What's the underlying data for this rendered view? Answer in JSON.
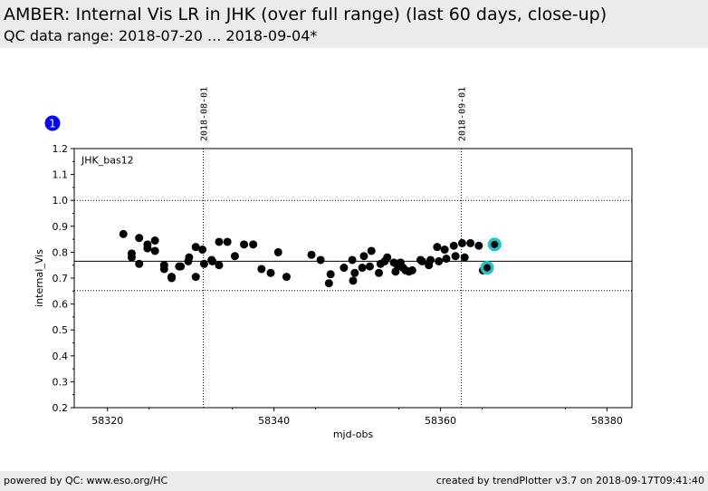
{
  "header": {
    "title": "AMBER: Internal Vis LR in JHK (over full range) (last 60 days, close-up)",
    "subtitle": "QC data range: 2018-07-20 ... 2018-09-04*"
  },
  "footer": {
    "left": "powered by QC: www.eso.org/HC",
    "right": "created by trendPlotter v3.7 on 2018-09-17T09:41:40"
  },
  "badge": {
    "label": "1",
    "color": "#0000ff"
  },
  "chart_data": {
    "type": "scatter",
    "series_label": "JHK_bas12",
    "xlabel": "mjd-obs",
    "ylabel": "internal_Vis",
    "xlim": [
      58316,
      58383
    ],
    "ylim": [
      0.2,
      1.2
    ],
    "xticks": [
      58320,
      58340,
      58360,
      58380
    ],
    "xtick_labels": [
      "58320",
      "58340",
      "58360",
      "58380"
    ],
    "yticks": [
      0.2,
      0.3,
      0.4,
      0.5,
      0.6,
      0.7,
      0.8,
      0.9,
      1.0,
      1.1,
      1.2
    ],
    "ytick_labels": [
      "0.2",
      "0.3",
      "0.4",
      "0.5",
      "0.6",
      "0.7",
      "0.8",
      "0.9",
      "1.0",
      "1.1",
      "1.2"
    ],
    "reference_lines": {
      "mean": 0.765,
      "upper": 1.0,
      "lower": 0.652
    },
    "date_markers": [
      {
        "x": 58331.5,
        "label": "2018-08-01"
      },
      {
        "x": 58362.5,
        "label": "2018-09-01"
      }
    ],
    "marker_color": "#000000",
    "highlight_color": "#1cc4c4",
    "points": [
      [
        58321.9,
        0.87
      ],
      [
        58322.9,
        0.795
      ],
      [
        58322.9,
        0.78
      ],
      [
        58323.8,
        0.855
      ],
      [
        58323.8,
        0.755
      ],
      [
        58324.8,
        0.83
      ],
      [
        58324.8,
        0.815
      ],
      [
        58325.7,
        0.845
      ],
      [
        58325.7,
        0.805
      ],
      [
        58326.8,
        0.75
      ],
      [
        58326.8,
        0.735
      ],
      [
        58327.7,
        0.705
      ],
      [
        58327.7,
        0.7
      ],
      [
        58328.6,
        0.745
      ],
      [
        58328.8,
        0.745
      ],
      [
        58329.7,
        0.765
      ],
      [
        58329.8,
        0.78
      ],
      [
        58330.6,
        0.82
      ],
      [
        58330.6,
        0.705
      ],
      [
        58331.4,
        0.81
      ],
      [
        58331.6,
        0.755
      ],
      [
        58332.5,
        0.77
      ],
      [
        58332.6,
        0.765
      ],
      [
        58333.4,
        0.84
      ],
      [
        58333.4,
        0.75
      ],
      [
        58334.4,
        0.84
      ],
      [
        58335.3,
        0.785
      ],
      [
        58336.4,
        0.83
      ],
      [
        58337.5,
        0.83
      ],
      [
        58338.5,
        0.735
      ],
      [
        58339.6,
        0.72
      ],
      [
        58340.5,
        0.8
      ],
      [
        58341.5,
        0.705
      ],
      [
        58344.5,
        0.79
      ],
      [
        58345.6,
        0.77
      ],
      [
        58346.6,
        0.68
      ],
      [
        58346.8,
        0.715
      ],
      [
        58348.4,
        0.74
      ],
      [
        58349.4,
        0.77
      ],
      [
        58349.5,
        0.69
      ],
      [
        58349.7,
        0.72
      ],
      [
        58350.6,
        0.74
      ],
      [
        58350.8,
        0.785
      ],
      [
        58351.5,
        0.745
      ],
      [
        58351.7,
        0.805
      ],
      [
        58352.6,
        0.72
      ],
      [
        58352.8,
        0.755
      ],
      [
        58353.3,
        0.765
      ],
      [
        58353.6,
        0.78
      ],
      [
        58354.4,
        0.76
      ],
      [
        58354.6,
        0.725
      ],
      [
        58354.9,
        0.745
      ],
      [
        58355.2,
        0.76
      ],
      [
        58355.5,
        0.74
      ],
      [
        58355.8,
        0.73
      ],
      [
        58356.2,
        0.725
      ],
      [
        58356.6,
        0.73
      ],
      [
        58357.6,
        0.77
      ],
      [
        58357.8,
        0.765
      ],
      [
        58358.6,
        0.75
      ],
      [
        58358.8,
        0.77
      ],
      [
        58359.6,
        0.82
      ],
      [
        58359.8,
        0.765
      ],
      [
        58360.5,
        0.81
      ],
      [
        58360.7,
        0.775
      ],
      [
        58361.6,
        0.825
      ],
      [
        58361.8,
        0.785
      ],
      [
        58362.6,
        0.835
      ],
      [
        58362.9,
        0.78
      ],
      [
        58363.6,
        0.835
      ],
      [
        58364.6,
        0.825
      ],
      [
        58365.1,
        0.73
      ]
    ],
    "highlight_points": [
      [
        58365.6,
        0.74
      ],
      [
        58366.5,
        0.83
      ]
    ]
  }
}
